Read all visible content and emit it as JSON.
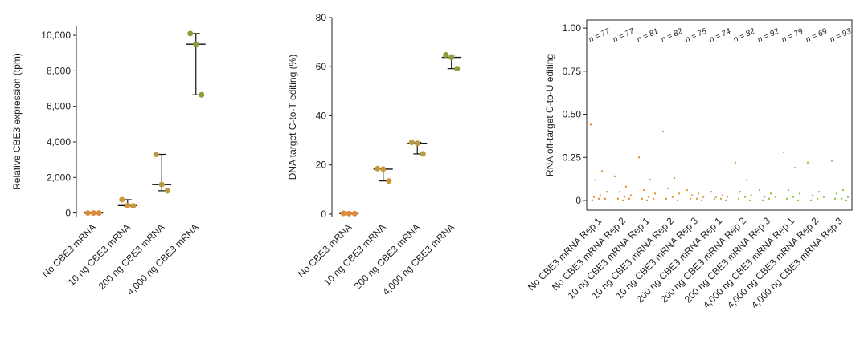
{
  "chart_data": [
    {
      "type": "strip",
      "summary": true,
      "ylabel": "Relative CBE3 expression (tpm)",
      "categories": [
        "No CBE3 mRNA",
        "10 ng CBE3 mRNA",
        "200 ng CBE3 mRNA",
        "4,000 ng CBE3 mRNA"
      ],
      "values": [
        [
          0,
          0,
          0
        ],
        [
          750,
          420,
          400
        ],
        [
          3300,
          1600,
          1250
        ],
        [
          10100,
          9500,
          6650
        ]
      ],
      "colors": [
        "#e08a3c",
        "#c9963a",
        "#b89a45",
        "#8f9c3a"
      ],
      "ylim": [
        -200,
        10500
      ],
      "yticks": [
        0,
        {
          "value": 2000,
          "label": "2,000"
        },
        {
          "value": 4000,
          "label": "4,000"
        },
        {
          "value": 6000,
          "label": "6,000"
        },
        {
          "value": 8000,
          "label": "8,000"
        },
        {
          "value": 10000,
          "label": "10,000"
        }
      ]
    },
    {
      "type": "strip",
      "summary": true,
      "ylabel": "DNA target C-to-T editing (%)",
      "categories": [
        "No CBE3 mRNA",
        "10 ng CBE3 mRNA",
        "200 ng CBE3 mRNA",
        "4,000 ng CBE3 mRNA"
      ],
      "values": [
        [
          0.3,
          0.2,
          0.2
        ],
        [
          18.5,
          18.3,
          13.5
        ],
        [
          29.2,
          28.8,
          24.5
        ],
        [
          64.8,
          63.8,
          59.2
        ]
      ],
      "colors": [
        "#e08a3c",
        "#c9963a",
        "#b89a45",
        "#8f9c3a"
      ],
      "ylim": [
        -1,
        80
      ],
      "yticks": [
        0,
        20,
        40,
        60,
        80
      ]
    },
    {
      "type": "strip",
      "summary": false,
      "frame": true,
      "ylabel": "RNA off-target C-to-U editing",
      "categories": [
        "No CBE3 mRNA Rep 1",
        "No CBE3 mRNA Rep 2",
        "10 ng CBE3 mRNA Rep 1",
        "10 ng CBE3 mRNA Rep 2",
        "10 ng CBE3 mRNA Rep 3",
        "200 ng CBE3 mRNA Rep 1",
        "200 ng CBE3 mRNA Rep 2",
        "200 ng CBE3 mRNA Rep 3",
        "4,000 ng CBE3 mRNA Rep 1",
        "4,000 ng CBE3 mRNA Rep 2",
        "4,000 ng CBE3 mRNA Rep 3"
      ],
      "annotations": [
        "n = 77",
        "n = 77",
        "n = 81",
        "n = 82",
        "n = 75",
        "n = 74",
        "n = 82",
        "n = 92",
        "n = 79",
        "n = 69",
        "n = 93"
      ],
      "values": [
        [
          0.44,
          0.17,
          0.12,
          0.05,
          0.03,
          0.02,
          0.01,
          0.01,
          0.0
        ],
        [
          0.14,
          0.08,
          0.05,
          0.03,
          0.02,
          0.01,
          0.01,
          0.0
        ],
        [
          0.25,
          0.12,
          0.06,
          0.04,
          0.02,
          0.01,
          0.01,
          0.0
        ],
        [
          0.4,
          0.13,
          0.07,
          0.04,
          0.02,
          0.01,
          0.0
        ],
        [
          0.06,
          0.04,
          0.03,
          0.02,
          0.01,
          0.01,
          0.0
        ],
        [
          0.05,
          0.03,
          0.02,
          0.02,
          0.01,
          0.01,
          0.0
        ],
        [
          0.22,
          0.12,
          0.05,
          0.03,
          0.02,
          0.01,
          0.0
        ],
        [
          0.06,
          0.04,
          0.02,
          0.02,
          0.01,
          0.0
        ],
        [
          0.28,
          0.19,
          0.06,
          0.04,
          0.02,
          0.01,
          0.0
        ],
        [
          0.22,
          0.05,
          0.03,
          0.02,
          0.01,
          0.0
        ],
        [
          0.23,
          0.06,
          0.04,
          0.02,
          0.01,
          0.01,
          0.0
        ]
      ],
      "colors": [
        "#e8923a",
        "#e8923a",
        "#e8923a",
        "#e09a3c",
        "#d9a040",
        "#c8a84a",
        "#bcae45",
        "#b0b440",
        "#8cc63f",
        "#8cc63f",
        "#8cc63f"
      ],
      "ylim": [
        -0.056,
        1.047
      ],
      "yticks": [
        0,
        0.25,
        {
          "value": 0.5,
          "label": "0.50"
        },
        0.75,
        {
          "value": 1,
          "label": "1.00"
        }
      ]
    }
  ]
}
